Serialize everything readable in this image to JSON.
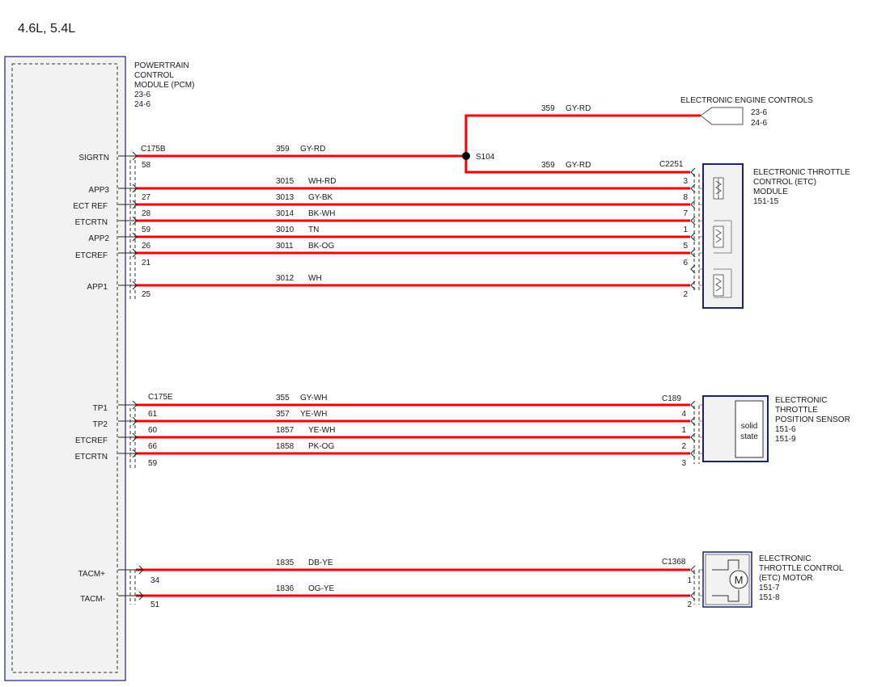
{
  "header": {
    "title": "4.6L, 5.4L"
  },
  "pcm": {
    "name_lines": [
      "POWERTRAIN",
      "CONTROL",
      "MODULE (PCM)",
      "23-6",
      "24-6"
    ],
    "pins": [
      "SIGRTN",
      "APP3",
      "ECT REF",
      "ETCRTN",
      "APP2",
      "ETCREF",
      "APP1",
      "TP1",
      "TP2",
      "ETCREF",
      "ETCRTN",
      "TACM+",
      "TACM-"
    ]
  },
  "connectors": {
    "c175b": "C175B",
    "c175e": "C175E",
    "c2251": "C2251",
    "c189": "C189",
    "c1368": "C1368"
  },
  "splice": {
    "label": "S104"
  },
  "eec": {
    "title": "ELECTRONIC ENGINE CONTROLS",
    "refs": [
      "23-6",
      "24-6"
    ]
  },
  "wires": [
    {
      "circuit": "359",
      "color": "GY-RD",
      "pcm_pin": "58",
      "device_pin": ""
    },
    {
      "circuit": "3015",
      "color": "WH-RD",
      "pcm_pin": "27",
      "device_pin": "3"
    },
    {
      "circuit": "3013",
      "color": "GY-BK",
      "pcm_pin": "28",
      "device_pin": "8"
    },
    {
      "circuit": "3014",
      "color": "BK-WH",
      "pcm_pin": "59",
      "device_pin": "7"
    },
    {
      "circuit": "3010",
      "color": "TN",
      "pcm_pin": "26",
      "device_pin": "1"
    },
    {
      "circuit": "3011",
      "color": "BK-OG",
      "pcm_pin": "21",
      "device_pin": "5"
    },
    {
      "circuit": "3012",
      "color": "WH",
      "pcm_pin": "25",
      "device_pin": "2"
    },
    {
      "circuit": "355",
      "color": "GY-WH",
      "pcm_pin": "61",
      "device_pin": "4"
    },
    {
      "circuit": "357",
      "color": "YE-WH",
      "pcm_pin": "60",
      "device_pin": "1"
    },
    {
      "circuit": "1857",
      "color": "YE-WH",
      "pcm_pin": "66",
      "device_pin": "2"
    },
    {
      "circuit": "1858",
      "color": "PK-OG",
      "pcm_pin": "59",
      "device_pin": "3"
    },
    {
      "circuit": "1835",
      "color": "DB-YE",
      "pcm_pin": "34",
      "device_pin": "1"
    },
    {
      "circuit": "1836",
      "color": "OG-YE",
      "pcm_pin": "51",
      "device_pin": "2"
    }
  ],
  "branch_wires": [
    {
      "circuit": "359",
      "color": "GY-RD"
    },
    {
      "circuit": "359",
      "color": "GY-RD",
      "device_pin": "6"
    }
  ],
  "etc_module": {
    "name_lines": [
      "ELECTRONIC THROTTLE",
      "CONTROL (ETC)",
      "MODULE",
      "151-15"
    ]
  },
  "tp_sensor": {
    "name_lines": [
      "ELECTRONIC",
      "THROTTLE",
      "POSITION SENSOR",
      "151-6",
      "151-9"
    ],
    "inner_lines": [
      "solid",
      "state"
    ]
  },
  "etc_motor": {
    "name_lines": [
      "ELECTRONIC",
      "THROTTLE CONTROL",
      "(ETC) MOTOR",
      "151-7",
      "151-8"
    ],
    "symbol": "M"
  },
  "colors": {
    "wire": "#f20000",
    "component_border": "#1c2270",
    "pcm_fill": "#f2f2f2"
  }
}
